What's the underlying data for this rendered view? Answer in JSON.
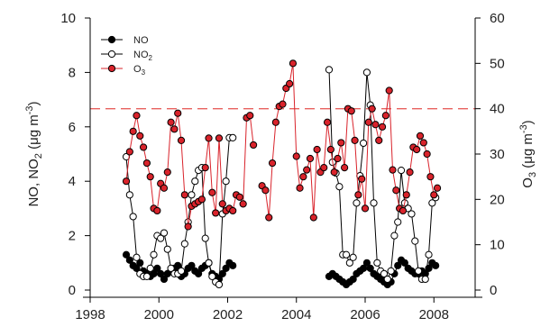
{
  "chart_data": {
    "type": "scatter",
    "x_axis": {
      "min": 1998,
      "max": 2009.2,
      "ticks": [
        1998,
        2000,
        2002,
        2004,
        2006,
        2008
      ],
      "tick_labels": [
        "1998",
        "2000",
        "2002",
        "2004",
        "2006",
        "2008"
      ]
    },
    "y_left": {
      "min": 0,
      "max": 10,
      "ticks": [
        0,
        2,
        4,
        6,
        8,
        10
      ],
      "tick_labels": [
        "0",
        "2",
        "4",
        "6",
        "8",
        "10"
      ],
      "label": {
        "base": "NO, NO",
        "sub": "2",
        "unit_pre": " (μg m",
        "sup": "-3",
        "unit_post": ")"
      }
    },
    "y_right": {
      "min": 0,
      "max": 60,
      "ticks": [
        0,
        10,
        20,
        30,
        40,
        50,
        60
      ],
      "tick_labels": [
        "0",
        "10",
        "20",
        "30",
        "40",
        "50",
        "60"
      ],
      "label": {
        "base": "O",
        "sub": "3",
        "unit_pre": " (μg m",
        "sup": "-3",
        "unit_post": ")"
      }
    },
    "reference_line": {
      "axis": "right",
      "value": 40,
      "style": "dashed",
      "color": "#e8615f"
    },
    "legend": {
      "placement": "top-left",
      "entries": [
        {
          "base": "NO",
          "sub": ""
        },
        {
          "base": "NO",
          "sub": "2"
        },
        {
          "base": "O",
          "sub": "3"
        }
      ]
    },
    "series": [
      {
        "name": "NO",
        "axis": "left",
        "marker_fill": "#000000",
        "marker_stroke": "#000000",
        "line_color": "#000000",
        "segments": [
          [
            [
              1999.05,
              1.3
            ],
            [
              1999.15,
              1.1
            ],
            [
              1999.25,
              0.9
            ],
            [
              1999.35,
              0.8
            ],
            [
              1999.45,
              1.0
            ],
            [
              1999.55,
              0.7
            ],
            [
              1999.65,
              0.6
            ],
            [
              1999.75,
              0.5
            ],
            [
              1999.85,
              0.6
            ],
            [
              1999.95,
              0.8
            ],
            [
              2000.05,
              0.6
            ],
            [
              2000.15,
              0.4
            ],
            [
              2000.25,
              0.6
            ],
            [
              2000.35,
              0.7
            ],
            [
              2000.45,
              0.8
            ],
            [
              2000.55,
              0.9
            ],
            [
              2000.65,
              0.5
            ],
            [
              2000.75,
              0.6
            ],
            [
              2000.85,
              0.8
            ],
            [
              2000.95,
              0.9
            ],
            [
              2001.05,
              0.7
            ],
            [
              2001.15,
              0.6
            ],
            [
              2001.25,
              0.8
            ],
            [
              2001.35,
              0.9
            ],
            [
              2001.45,
              1.0
            ],
            [
              2001.55,
              0.6
            ],
            [
              2001.65,
              0.5
            ],
            [
              2001.75,
              0.4
            ],
            [
              2001.85,
              0.6
            ],
            [
              2001.95,
              0.8
            ],
            [
              2002.05,
              1.0
            ],
            [
              2002.15,
              0.9
            ]
          ],
          [
            [
              2004.95,
              0.5
            ],
            [
              2005.05,
              0.6
            ],
            [
              2005.15,
              0.5
            ],
            [
              2005.25,
              0.4
            ],
            [
              2005.35,
              0.3
            ],
            [
              2005.45,
              0.2
            ],
            [
              2005.55,
              0.3
            ],
            [
              2005.65,
              0.4
            ],
            [
              2005.75,
              0.6
            ],
            [
              2005.85,
              0.7
            ],
            [
              2005.95,
              0.8
            ],
            [
              2006.05,
              1.0
            ],
            [
              2006.15,
              0.8
            ],
            [
              2006.25,
              0.6
            ],
            [
              2006.35,
              0.5
            ],
            [
              2006.45,
              0.4
            ],
            [
              2006.55,
              0.3
            ],
            [
              2006.65,
              0.2
            ],
            [
              2006.75,
              0.3
            ],
            [
              2006.85,
              0.6
            ],
            [
              2006.95,
              0.9
            ],
            [
              2007.05,
              1.1
            ],
            [
              2007.15,
              1.0
            ],
            [
              2007.25,
              0.8
            ],
            [
              2007.35,
              0.7
            ],
            [
              2007.45,
              0.6
            ],
            [
              2007.55,
              0.6
            ],
            [
              2007.65,
              0.7
            ],
            [
              2007.75,
              0.6
            ],
            [
              2007.85,
              0.8
            ],
            [
              2007.95,
              1.0
            ],
            [
              2008.05,
              0.9
            ]
          ]
        ]
      },
      {
        "name": "NO2",
        "axis": "left",
        "marker_fill": "#ffffff",
        "marker_stroke": "#000000",
        "line_color": "#000000",
        "segments": [
          [
            [
              1999.05,
              4.9
            ],
            [
              1999.15,
              3.5
            ],
            [
              1999.25,
              2.7
            ],
            [
              1999.35,
              1.2
            ],
            [
              1999.45,
              0.6
            ],
            [
              1999.55,
              0.5
            ],
            [
              1999.65,
              0.5
            ],
            [
              1999.75,
              0.8
            ],
            [
              1999.85,
              1.3
            ],
            [
              1999.95,
              2.0
            ],
            [
              2000.05,
              1.9
            ],
            [
              2000.15,
              2.1
            ],
            [
              2000.25,
              1.5
            ],
            [
              2000.35,
              0.8
            ],
            [
              2000.45,
              0.6
            ],
            [
              2000.55,
              0.6
            ],
            [
              2000.65,
              0.7
            ],
            [
              2000.75,
              1.7
            ],
            [
              2000.85,
              2.5
            ],
            [
              2000.95,
              3.5
            ],
            [
              2001.05,
              4.0
            ],
            [
              2001.15,
              4.4
            ],
            [
              2001.25,
              4.5
            ],
            [
              2001.35,
              1.9
            ],
            [
              2001.45,
              1.0
            ],
            [
              2001.55,
              0.5
            ],
            [
              2001.65,
              0.3
            ],
            [
              2001.75,
              0.2
            ],
            [
              2001.85,
              2.8
            ],
            [
              2001.95,
              4.0
            ],
            [
              2002.05,
              5.6
            ],
            [
              2002.15,
              5.6
            ]
          ],
          [
            [
              2004.95,
              8.1
            ],
            [
              2005.05,
              4.7
            ],
            [
              2005.15,
              4.3
            ],
            [
              2005.25,
              3.8
            ],
            [
              2005.35,
              1.3
            ],
            [
              2005.45,
              1.3
            ],
            [
              2005.55,
              1.0
            ],
            [
              2005.65,
              1.2
            ],
            [
              2005.75,
              3.2
            ],
            [
              2005.85,
              4.2
            ],
            [
              2005.95,
              5.4
            ],
            [
              2006.05,
              8.0
            ],
            [
              2006.15,
              6.8
            ],
            [
              2006.25,
              3.2
            ],
            [
              2006.35,
              1.0
            ],
            [
              2006.45,
              0.7
            ],
            [
              2006.55,
              0.6
            ],
            [
              2006.65,
              0.4
            ],
            [
              2006.75,
              0.7
            ],
            [
              2006.85,
              2.0
            ],
            [
              2006.95,
              2.5
            ],
            [
              2007.05,
              4.4
            ],
            [
              2007.15,
              3.2
            ],
            [
              2007.25,
              3.0
            ],
            [
              2007.35,
              2.8
            ],
            [
              2007.45,
              1.8
            ],
            [
              2007.55,
              0.7
            ],
            [
              2007.65,
              0.4
            ],
            [
              2007.75,
              0.4
            ],
            [
              2007.85,
              1.3
            ],
            [
              2007.95,
              3.2
            ],
            [
              2008.05,
              3.4
            ]
          ]
        ]
      },
      {
        "name": "O3",
        "axis": "right",
        "marker_fill": "#d9232b",
        "marker_stroke": "#000000",
        "line_color": "#d9232b",
        "segments": [
          [
            [
              1999.05,
              24
            ],
            [
              1999.15,
              30.5
            ],
            [
              1999.25,
              35
            ],
            [
              1999.35,
              38.5
            ],
            [
              1999.45,
              34
            ],
            [
              1999.55,
              31.5
            ],
            [
              1999.65,
              28
            ],
            [
              1999.75,
              25
            ],
            [
              1999.85,
              18
            ],
            [
              1999.95,
              17.5
            ],
            [
              2000.05,
              23.5
            ],
            [
              2000.15,
              22.5
            ],
            [
              2000.25,
              26
            ],
            [
              2000.35,
              37
            ],
            [
              2000.45,
              35.5
            ],
            [
              2000.55,
              39
            ],
            [
              2000.65,
              33
            ],
            [
              2000.75,
              21
            ],
            [
              2000.85,
              14
            ],
            [
              2000.95,
              18.5
            ],
            [
              2001.05,
              19
            ],
            [
              2001.15,
              19.5
            ],
            [
              2001.25,
              20
            ],
            [
              2001.35,
              27
            ],
            [
              2001.45,
              33.5
            ],
            [
              2001.55,
              21.5
            ],
            [
              2001.65,
              17
            ],
            [
              2001.75,
              33.5
            ],
            [
              2001.85,
              19
            ],
            [
              2001.95,
              17.5
            ],
            [
              2002.05,
              18
            ],
            [
              2002.15,
              17.5
            ],
            [
              2002.25,
              21
            ],
            [
              2002.35,
              20.5
            ],
            [
              2002.45,
              19
            ],
            [
              2002.55,
              38
            ],
            [
              2002.65,
              38.5
            ],
            [
              2002.75,
              32
            ]
          ],
          [
            [
              2003.0,
              23
            ],
            [
              2003.1,
              22
            ],
            [
              2003.2,
              16
            ],
            [
              2003.3,
              28
            ],
            [
              2003.4,
              37
            ],
            [
              2003.5,
              40.5
            ],
            [
              2003.6,
              41
            ],
            [
              2003.7,
              44.5
            ],
            [
              2003.8,
              45.5
            ],
            [
              2003.9,
              50
            ],
            [
              2004.0,
              29.5
            ],
            [
              2004.1,
              22.5
            ],
            [
              2004.2,
              25
            ],
            [
              2004.3,
              26.5
            ],
            [
              2004.4,
              29
            ],
            [
              2004.5,
              16
            ],
            [
              2004.6,
              31
            ],
            [
              2004.7,
              26
            ],
            [
              2004.8,
              27
            ],
            [
              2004.9,
              37
            ],
            [
              2005.0,
              31
            ],
            [
              2005.1,
              26
            ],
            [
              2005.2,
              29
            ],
            [
              2005.3,
              32.5
            ],
            [
              2005.4,
              27
            ],
            [
              2005.5,
              40
            ],
            [
              2005.6,
              39.5
            ],
            [
              2005.7,
              33
            ],
            [
              2005.8,
              21
            ],
            [
              2005.9,
              24.5
            ],
            [
              2006.0,
              18
            ],
            [
              2006.1,
              37
            ],
            [
              2006.2,
              40
            ],
            [
              2006.3,
              36.5
            ],
            [
              2006.4,
              33
            ],
            [
              2006.5,
              36
            ],
            [
              2006.6,
              38.5
            ],
            [
              2006.7,
              44
            ],
            [
              2006.8,
              26.5
            ],
            [
              2006.9,
              22
            ],
            [
              2007.0,
              18
            ],
            [
              2007.1,
              17.5
            ],
            [
              2007.2,
              21
            ],
            [
              2007.3,
              26
            ],
            [
              2007.4,
              31.5
            ],
            [
              2007.5,
              31
            ],
            [
              2007.6,
              34
            ],
            [
              2007.7,
              32.5
            ],
            [
              2007.8,
              30
            ],
            [
              2007.9,
              25
            ],
            [
              2008.0,
              21
            ],
            [
              2008.1,
              22.5
            ]
          ]
        ]
      }
    ]
  }
}
